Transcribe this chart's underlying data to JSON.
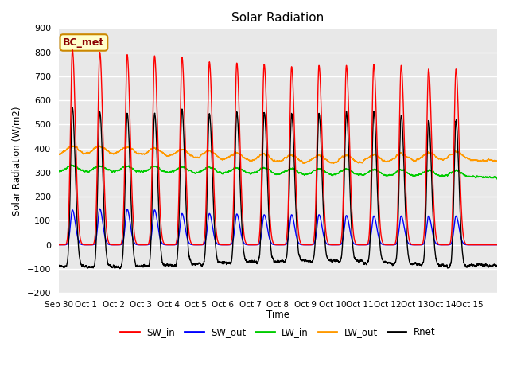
{
  "title": "Solar Radiation",
  "ylabel": "Solar Radiation (W/m2)",
  "xlabel": "Time",
  "annotation": "BC_met",
  "ylim": [
    -200,
    900
  ],
  "yticks": [
    -200,
    -100,
    0,
    100,
    200,
    300,
    400,
    500,
    600,
    700,
    800,
    900
  ],
  "colors": {
    "SW_in": "#ff0000",
    "SW_out": "#0000ff",
    "LW_in": "#00cc00",
    "LW_out": "#ff9900",
    "Rnet": "#000000"
  },
  "background_color": "#e8e8e8",
  "grid_color": "#ffffff",
  "SW_in_peaks": [
    810,
    800,
    790,
    785,
    780,
    760,
    755,
    750,
    740,
    745,
    745,
    750,
    745,
    730,
    730
  ],
  "SW_out_peaks": [
    145,
    150,
    148,
    145,
    130,
    130,
    128,
    125,
    125,
    125,
    122,
    120,
    120,
    120,
    120
  ],
  "LW_in_base": 305,
  "LW_out_base": 355,
  "night_rnet": -80,
  "tick_dates": [
    "Sep 30",
    "Oct 1",
    "Oct 2",
    "Oct 3",
    "Oct 4",
    "Oct 5",
    "Oct 6",
    "Oct 7",
    "Oct 8",
    "Oct 9",
    "Oct 10",
    "Oct 11",
    "Oct 12",
    "Oct 13",
    "Oct 14",
    "Oct 15"
  ]
}
